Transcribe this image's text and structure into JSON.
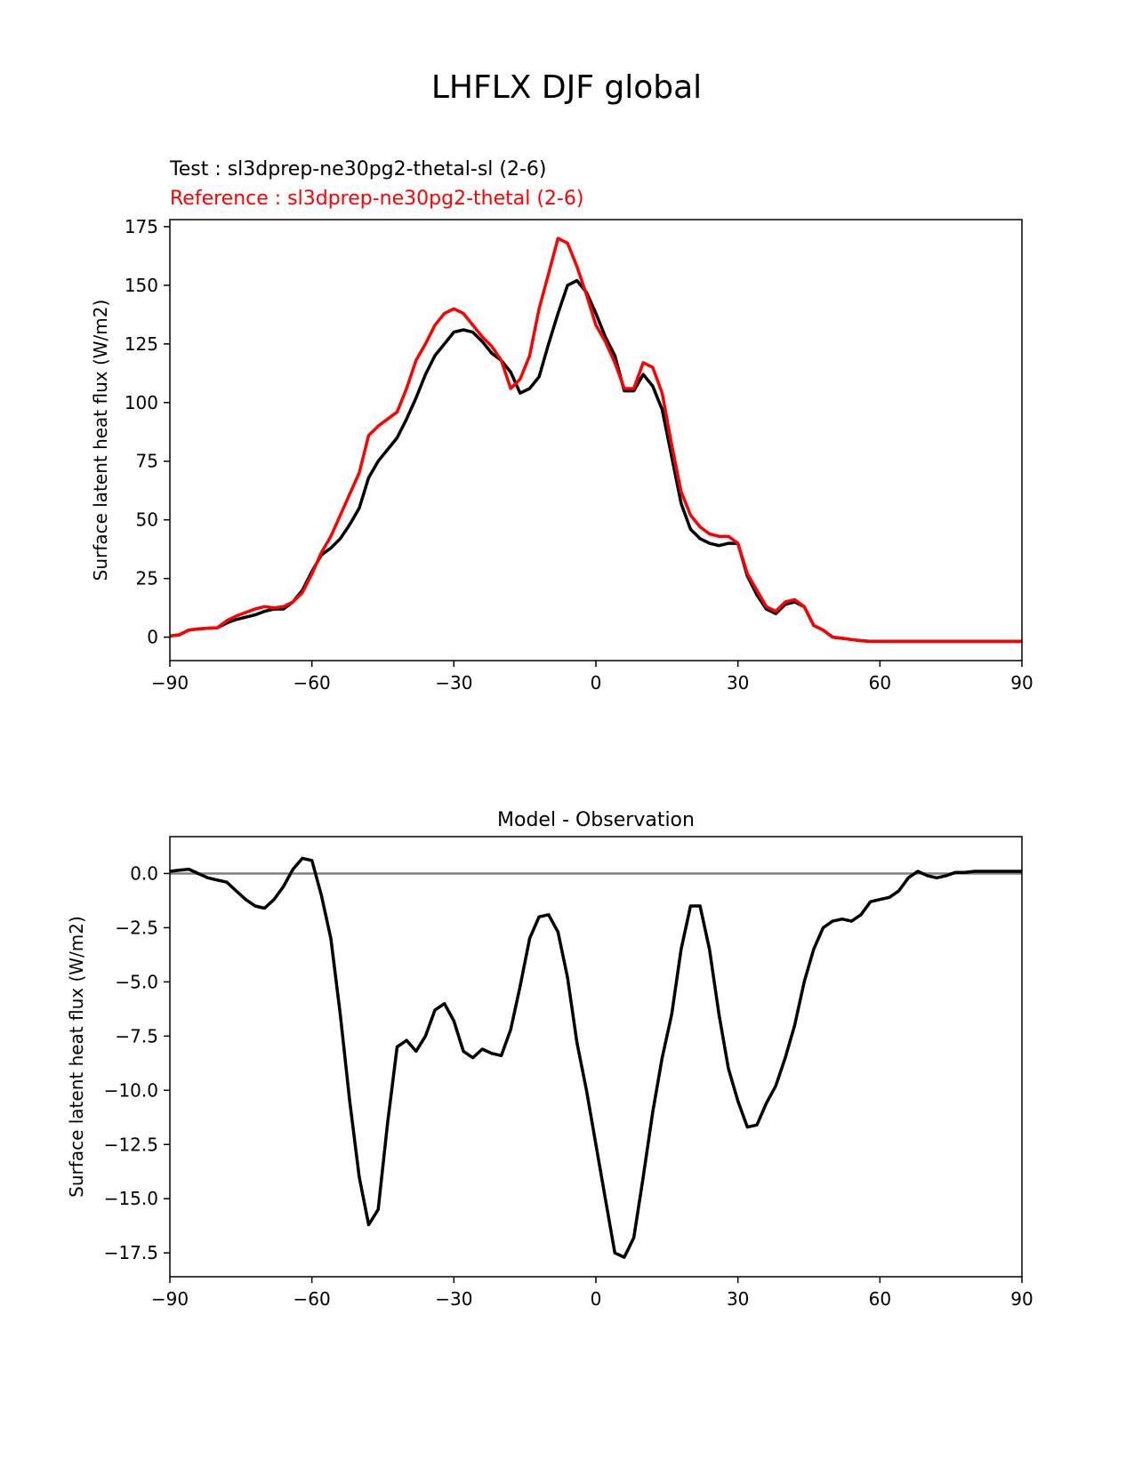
{
  "figure": {
    "title": "LHFLX DJF global",
    "test_label": "Test : sl3dprep-ne30pg2-thetal-sl (2-6)",
    "reference_label": "Reference : sl3dprep-ne30pg2-thetal (2-6)"
  },
  "colors": {
    "test": "#000000",
    "reference": "#ff0000",
    "zero_line": "#808080",
    "axes": "#000000"
  },
  "chart_data": [
    {
      "type": "line",
      "title": "",
      "xlabel": "",
      "ylabel": "Surface latent heat flux (W/m2)",
      "xlim": [
        -90,
        90
      ],
      "ylim": [
        -10,
        178
      ],
      "xticks": [
        -90,
        -60,
        -30,
        0,
        30,
        60,
        90
      ],
      "xtick_labels": [
        "−90",
        "−60",
        "−30",
        "0",
        "30",
        "60",
        "90"
      ],
      "yticks": [
        0,
        25,
        50,
        75,
        100,
        125,
        150,
        175
      ],
      "ytick_labels": [
        "0",
        "25",
        "50",
        "75",
        "100",
        "125",
        "150",
        "175"
      ],
      "grid": false,
      "legend": "top-left, above axes",
      "series": [
        {
          "name": "Test : sl3dprep-ne30pg2-thetal-sl (2-6)",
          "color": "#000000",
          "x": [
            -90,
            -88,
            -86,
            -84,
            -82,
            -80,
            -78,
            -76,
            -74,
            -72,
            -70,
            -68,
            -66,
            -64,
            -62,
            -60,
            -58,
            -56,
            -54,
            -52,
            -50,
            -48,
            -46,
            -44,
            -42,
            -40,
            -38,
            -36,
            -34,
            -32,
            -30,
            -28,
            -26,
            -24,
            -22,
            -20,
            -18,
            -16,
            -14,
            -12,
            -10,
            -8,
            -6,
            -4,
            -2,
            0,
            2,
            4,
            6,
            8,
            10,
            12,
            14,
            16,
            18,
            20,
            22,
            24,
            26,
            28,
            30,
            32,
            34,
            36,
            38,
            40,
            42,
            44,
            46,
            48,
            50,
            52,
            54,
            56,
            58,
            60,
            62,
            64,
            66,
            68,
            70,
            72,
            74,
            76,
            78,
            80,
            82,
            84,
            86,
            88,
            90
          ],
          "y": [
            0.5,
            1,
            3,
            3.5,
            3.8,
            4,
            6,
            7.5,
            8.5,
            9.5,
            11,
            12,
            12,
            15,
            20,
            28,
            35,
            38,
            42,
            48,
            55,
            68,
            75,
            80,
            85,
            93,
            102,
            112,
            120,
            125,
            130,
            131,
            130,
            126,
            121,
            118,
            113,
            104,
            106,
            111,
            125,
            138,
            150,
            152,
            147,
            138,
            128,
            120,
            105,
            105,
            112,
            107,
            97,
            77,
            57,
            46,
            42,
            40,
            39,
            40,
            40,
            26,
            18,
            12,
            10,
            14,
            15,
            13,
            5,
            3,
            0,
            -0.5,
            -1,
            -1.5,
            -1.8,
            -1.8,
            -1.8,
            -1.8,
            -1.8,
            -1.8,
            -1.8,
            -1.8,
            -1.8,
            -1.8,
            -1.8,
            -1.8,
            -1.8,
            -1.8,
            -1.8,
            -1.8,
            -1.8
          ]
        },
        {
          "name": "Reference : sl3dprep-ne30pg2-thetal (2-6)",
          "color": "#ff0000",
          "x": [
            -90,
            -88,
            -86,
            -84,
            -82,
            -80,
            -78,
            -76,
            -74,
            -72,
            -70,
            -68,
            -66,
            -64,
            -62,
            -60,
            -58,
            -56,
            -54,
            -52,
            -50,
            -48,
            -46,
            -44,
            -42,
            -40,
            -38,
            -36,
            -34,
            -32,
            -30,
            -28,
            -26,
            -24,
            -22,
            -20,
            -18,
            -16,
            -14,
            -12,
            -10,
            -8,
            -6,
            -4,
            -2,
            0,
            2,
            4,
            6,
            8,
            10,
            12,
            14,
            16,
            18,
            20,
            22,
            24,
            26,
            28,
            30,
            32,
            34,
            36,
            38,
            40,
            42,
            44,
            46,
            48,
            50,
            52,
            54,
            56,
            58,
            60,
            62,
            64,
            66,
            68,
            70,
            72,
            74,
            76,
            78,
            80,
            82,
            84,
            86,
            88,
            90
          ],
          "y": [
            0.5,
            1,
            3,
            3.5,
            3.8,
            4,
            7,
            9,
            10.5,
            12,
            13,
            12.5,
            13,
            15,
            19,
            27,
            36,
            43,
            52,
            61,
            70,
            86,
            90,
            93,
            96,
            106,
            118,
            125,
            133,
            138,
            140,
            138,
            133,
            128,
            124,
            118,
            106,
            110,
            120,
            140,
            155,
            170,
            168,
            158,
            146,
            133,
            126,
            117,
            106,
            106,
            117,
            115,
            104,
            82,
            62,
            52,
            47,
            44,
            43,
            43,
            40,
            27,
            20,
            13,
            11,
            15,
            16,
            13,
            5,
            3,
            0,
            -0.5,
            -1,
            -1.5,
            -1.8,
            -1.8,
            -1.8,
            -1.8,
            -1.8,
            -1.8,
            -1.8,
            -1.8,
            -1.8,
            -1.8,
            -1.8,
            -1.8,
            -1.8,
            -1.8,
            -1.8,
            -1.8,
            -1.8
          ]
        }
      ]
    },
    {
      "type": "line",
      "title": "Model - Observation",
      "xlabel": "",
      "ylabel": "Surface latent heat flux (W/m2)",
      "xlim": [
        -90,
        90
      ],
      "ylim": [
        -18.6,
        1.7
      ],
      "xticks": [
        -90,
        -60,
        -30,
        0,
        30,
        60,
        90
      ],
      "xtick_labels": [
        "−90",
        "−60",
        "−30",
        "0",
        "30",
        "60",
        "90"
      ],
      "yticks": [
        0,
        -2.5,
        -5,
        -7.5,
        -10,
        -12.5,
        -15,
        -17.5
      ],
      "ytick_labels": [
        "0.0",
        "−2.5",
        "−5.0",
        "−7.5",
        "−10.0",
        "−12.5",
        "−15.0",
        "−17.5"
      ],
      "grid": false,
      "zero_line": 0,
      "series": [
        {
          "color": "#000000",
          "x": [
            -90,
            -88,
            -86,
            -84,
            -82,
            -80,
            -78,
            -76,
            -74,
            -72,
            -70,
            -68,
            -66,
            -64,
            -62,
            -60,
            -58,
            -56,
            -54,
            -52,
            -50,
            -48,
            -46,
            -44,
            -42,
            -40,
            -38,
            -36,
            -34,
            -32,
            -30,
            -28,
            -26,
            -24,
            -22,
            -20,
            -18,
            -16,
            -14,
            -12,
            -10,
            -8,
            -6,
            -4,
            -2,
            0,
            2,
            4,
            6,
            8,
            10,
            12,
            14,
            16,
            18,
            20,
            22,
            24,
            26,
            28,
            30,
            32,
            34,
            36,
            38,
            40,
            42,
            44,
            46,
            48,
            50,
            52,
            54,
            56,
            58,
            60,
            62,
            64,
            66,
            68,
            70,
            72,
            74,
            76,
            78,
            80,
            82,
            84,
            86,
            88,
            90
          ],
          "y": [
            0.1,
            0.15,
            0.2,
            0,
            -0.2,
            -0.3,
            -0.4,
            -0.8,
            -1.2,
            -1.5,
            -1.6,
            -1.2,
            -0.6,
            0.2,
            0.7,
            0.6,
            -1.0,
            -3.0,
            -6.5,
            -10.5,
            -14.0,
            -16.2,
            -15.5,
            -11.5,
            -8.0,
            -7.7,
            -8.2,
            -7.5,
            -6.3,
            -6.0,
            -6.8,
            -8.2,
            -8.5,
            -8.1,
            -8.3,
            -8.4,
            -7.2,
            -5.2,
            -3.0,
            -2.0,
            -1.9,
            -2.7,
            -4.8,
            -7.8,
            -10.0,
            -12.5,
            -15.0,
            -17.5,
            -17.7,
            -16.8,
            -14.0,
            -11.0,
            -8.5,
            -6.5,
            -3.5,
            -1.5,
            -1.5,
            -3.5,
            -6.5,
            -9.0,
            -10.5,
            -11.7,
            -11.6,
            -10.6,
            -9.8,
            -8.5,
            -7.0,
            -5.0,
            -3.5,
            -2.5,
            -2.2,
            -2.1,
            -2.2,
            -1.9,
            -1.3,
            -1.2,
            -1.1,
            -0.8,
            -0.2,
            0.1,
            -0.1,
            -0.2,
            -0.1,
            0.05,
            0.05,
            0.1,
            0.1,
            0.1,
            0.1,
            0.1,
            0.1
          ]
        }
      ]
    }
  ]
}
